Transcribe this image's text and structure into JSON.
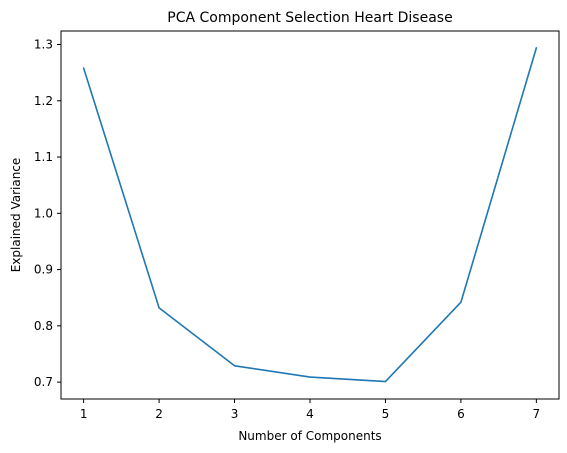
{
  "chart_data": {
    "type": "line",
    "title": "PCA Component Selection Heart Disease",
    "xlabel": "Number of Components",
    "ylabel": "Explained Variance",
    "x": [
      1,
      2,
      3,
      4,
      5,
      6,
      7
    ],
    "series": [
      {
        "values": [
          1.258,
          0.832,
          0.729,
          0.709,
          0.701,
          0.842,
          1.294
        ],
        "color": "#1f77b4"
      }
    ],
    "xticks": [
      1,
      2,
      3,
      4,
      5,
      6,
      7
    ],
    "xtick_labels": [
      "1",
      "2",
      "3",
      "4",
      "5",
      "6",
      "7"
    ],
    "yticks": [
      0.7,
      0.8,
      0.9,
      1.0,
      1.1,
      1.2,
      1.3
    ],
    "ytick_labels": [
      "0.7",
      "0.8",
      "0.9",
      "1.0",
      "1.1",
      "1.2",
      "1.3"
    ],
    "xlim": [
      0.7,
      7.3
    ],
    "ylim": [
      0.67,
      1.324
    ],
    "grid": false,
    "legend": false
  }
}
